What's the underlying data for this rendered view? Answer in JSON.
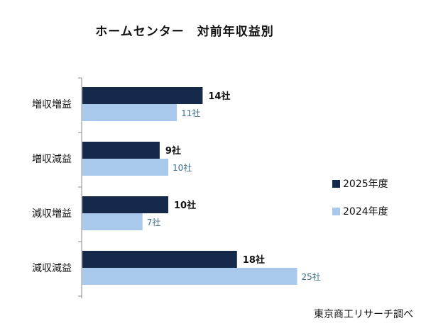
{
  "chart_data": {
    "type": "bar",
    "orientation": "horizontal",
    "title": "ホームセンター　対前年収益別",
    "categories": [
      "増収増益",
      "増収減益",
      "減収増益",
      "減収減益"
    ],
    "series": [
      {
        "name": "2025年度",
        "values": [
          14,
          9,
          10,
          18
        ],
        "labels": [
          "14社",
          "9社",
          "10社",
          "18社"
        ],
        "color": "#15294a"
      },
      {
        "name": "2024年度",
        "values": [
          11,
          10,
          7,
          25
        ],
        "labels": [
          "11社",
          "10社",
          "7社",
          "25社"
        ],
        "color": "#a8c8ec"
      }
    ],
    "xlim": [
      0,
      30
    ],
    "grid": false,
    "legend": "right"
  },
  "source": "東京商工リサーチ調べ"
}
